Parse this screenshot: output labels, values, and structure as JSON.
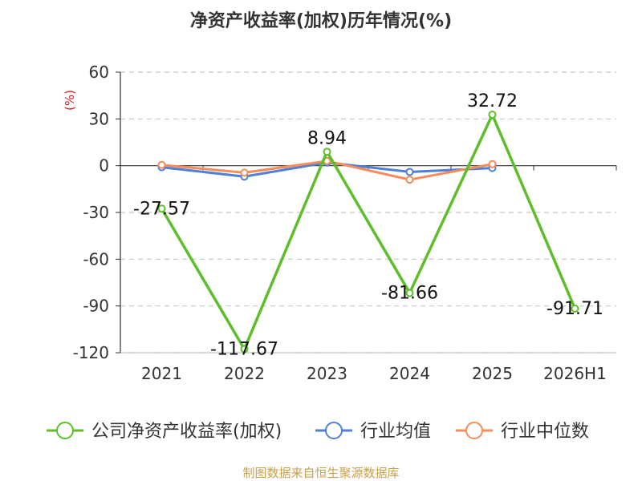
{
  "chart_data": {
    "type": "line",
    "title": "净资产收益率(加权)历年情况(%)",
    "ylabel": "(%)",
    "categories": [
      "2021",
      "2022",
      "2023",
      "2024",
      "2025",
      "2026H1"
    ],
    "ylim": [
      -120,
      60
    ],
    "yticks": [
      60,
      30,
      0,
      -30,
      -60,
      -90,
      -120
    ],
    "grid": true,
    "legend_position": "bottom",
    "series": [
      {
        "name": "公司净资产收益率(加权)",
        "color": "#5cbf2a",
        "values": [
          -27.57,
          -117.67,
          8.94,
          -81.66,
          32.72,
          -91.71
        ],
        "labels": [
          "-27.57",
          "-117.67",
          "8.94",
          "-81.66",
          "32.72",
          "-91.71"
        ]
      },
      {
        "name": "行业均值",
        "color": "#4e7fd9",
        "values": [
          -1.0,
          -7.0,
          2.0,
          -4.0,
          -1.5,
          null
        ]
      },
      {
        "name": "行业中位数",
        "color": "#f58c5a",
        "values": [
          0.5,
          -4.5,
          3.0,
          -9.0,
          1.0,
          null
        ]
      }
    ]
  },
  "source": "制图数据来自恒生聚源数据库"
}
